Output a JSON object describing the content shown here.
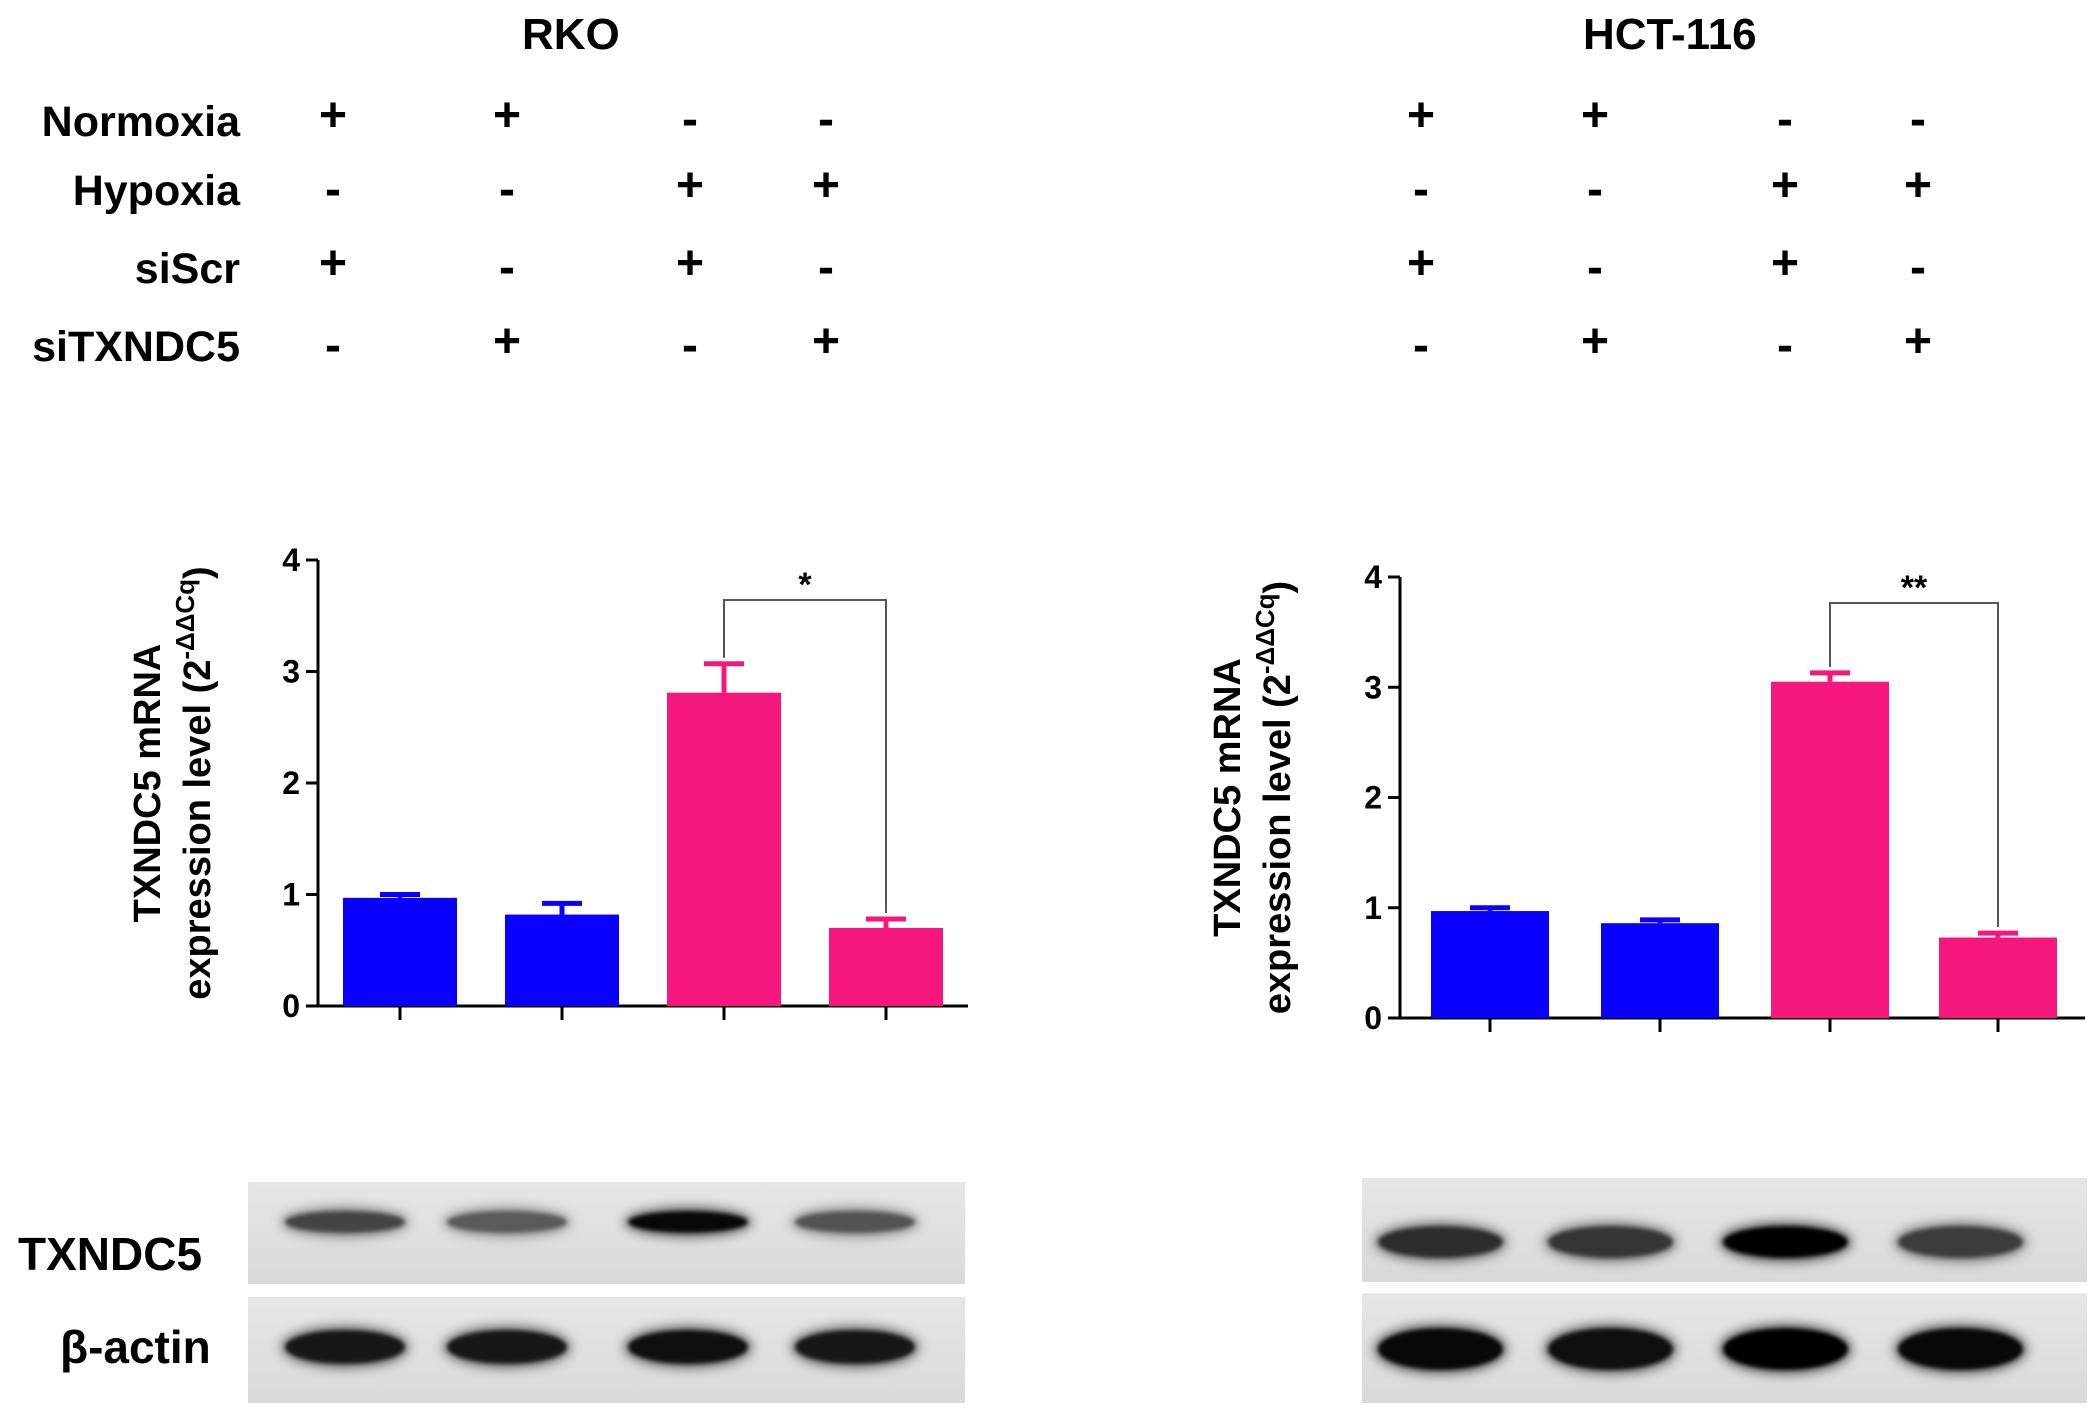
{
  "panels": [
    {
      "title": "RKO"
    },
    {
      "title": "HCT-116"
    }
  ],
  "conditions": {
    "rows": [
      {
        "label": "Normoxia",
        "values": [
          "+",
          "+",
          "-",
          "-"
        ]
      },
      {
        "label": "Hypoxia",
        "values": [
          "-",
          "-",
          "+",
          "+"
        ]
      },
      {
        "label": "siScr",
        "values": [
          "+",
          "-",
          "+",
          "-"
        ]
      },
      {
        "label": "siTXNDC5",
        "values": [
          "-",
          "+",
          "-",
          "+"
        ]
      }
    ]
  },
  "chart_data": [
    {
      "type": "bar",
      "title": "RKO",
      "ylabel_line1": "TXNDC5 mRNA",
      "ylabel_line2": "expression level (2",
      "ylabel_sup": "-ΔΔCq",
      "ylabel_close": ")",
      "ylim": [
        0,
        4
      ],
      "yticks": [
        "0",
        "1",
        "2",
        "3",
        "4"
      ],
      "values": [
        0.97,
        0.82,
        2.81,
        0.7
      ],
      "errors": [
        0.03,
        0.1,
        0.26,
        0.08
      ],
      "colors": [
        "#0a00ff",
        "#0a00ff",
        "#f5177d",
        "#f5177d"
      ],
      "significance": {
        "from": 2,
        "to": 3,
        "label": "*"
      }
    },
    {
      "type": "bar",
      "title": "HCT-116",
      "ylabel_line1": "TXNDC5 mRNA",
      "ylabel_line2": "expression level (2",
      "ylabel_sup": "-ΔΔCq",
      "ylabel_close": ")",
      "ylim": [
        0,
        4
      ],
      "yticks": [
        "0",
        "1",
        "2",
        "3",
        "4"
      ],
      "values": [
        0.97,
        0.86,
        3.05,
        0.73
      ],
      "errors": [
        0.03,
        0.03,
        0.08,
        0.04
      ],
      "colors": [
        "#0a00ff",
        "#0a00ff",
        "#f5177d",
        "#f5177d"
      ],
      "significance": {
        "from": 2,
        "to": 3,
        "label": "**"
      }
    }
  ],
  "western_blot": {
    "bands": [
      {
        "label": "TXNDC5",
        "rko_intensity": [
          0.55,
          0.4,
          0.95,
          0.45
        ],
        "hct_intensity": [
          0.7,
          0.65,
          1.0,
          0.6
        ]
      },
      {
        "label": "β-actin",
        "rko_intensity": [
          0.85,
          0.85,
          0.9,
          0.85
        ],
        "hct_intensity": [
          0.95,
          0.9,
          1.0,
          0.95
        ]
      }
    ]
  }
}
